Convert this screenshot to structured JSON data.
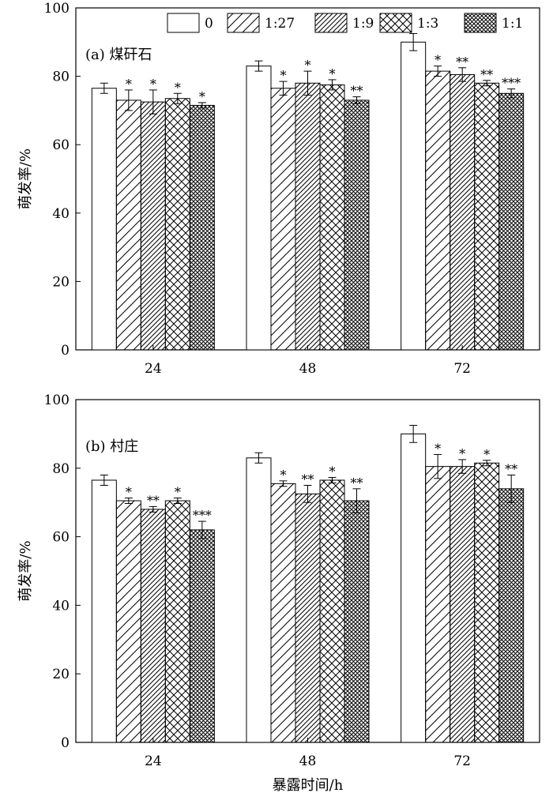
{
  "chart_data": [
    {
      "type": "bar",
      "panel_label": "(a) 煤矸石",
      "categories": [
        "24",
        "48",
        "72"
      ],
      "ylabel": "萌发率/%",
      "xlabel": "",
      "ylim": [
        0,
        100
      ],
      "yticks": [
        "0",
        "20",
        "40",
        "60",
        "80",
        "100"
      ],
      "grid": false,
      "legend_position": "top-right",
      "series": [
        {
          "name": "0",
          "pattern": "plain",
          "values": [
            76.5,
            83.0,
            90.0
          ],
          "errors": [
            1.5,
            1.5,
            2.5
          ],
          "significance": [
            "",
            "",
            ""
          ]
        },
        {
          "name": "1:27",
          "pattern": "diag-sparse",
          "values": [
            73.0,
            76.5,
            81.5
          ],
          "errors": [
            3.0,
            2.0,
            1.5
          ],
          "significance": [
            "*",
            "*",
            "*"
          ]
        },
        {
          "name": "1:9",
          "pattern": "diag-dense",
          "values": [
            72.5,
            78.0,
            80.5
          ],
          "errors": [
            3.5,
            3.5,
            2.0
          ],
          "significance": [
            "*",
            "*",
            "**"
          ]
        },
        {
          "name": "1:3",
          "pattern": "cross",
          "values": [
            73.5,
            77.5,
            78.0
          ],
          "errors": [
            1.5,
            1.5,
            0.8
          ],
          "significance": [
            "*",
            "*",
            "**"
          ]
        },
        {
          "name": "1:1",
          "pattern": "cross-dense",
          "values": [
            71.5,
            73.0,
            75.0
          ],
          "errors": [
            0.8,
            1.0,
            1.3
          ],
          "significance": [
            "*",
            "**",
            "***"
          ]
        }
      ]
    },
    {
      "type": "bar",
      "panel_label": "(b) 村庄",
      "categories": [
        "24",
        "48",
        "72"
      ],
      "ylabel": "萌发率/%",
      "xlabel": "暴露时间/h",
      "ylim": [
        0,
        100
      ],
      "yticks": [
        "0",
        "20",
        "40",
        "60",
        "80",
        "100"
      ],
      "grid": false,
      "series": [
        {
          "name": "0",
          "pattern": "plain",
          "values": [
            76.5,
            83.0,
            90.0
          ],
          "errors": [
            1.5,
            1.5,
            2.5
          ],
          "significance": [
            "",
            "",
            ""
          ]
        },
        {
          "name": "1:27",
          "pattern": "diag-sparse",
          "values": [
            70.5,
            75.5,
            80.5
          ],
          "errors": [
            0.8,
            0.8,
            3.5
          ],
          "significance": [
            "*",
            "*",
            "*"
          ]
        },
        {
          "name": "1:9",
          "pattern": "diag-dense",
          "values": [
            68.0,
            72.5,
            80.5
          ],
          "errors": [
            0.8,
            2.5,
            2.0
          ],
          "significance": [
            "**",
            "**",
            "*"
          ]
        },
        {
          "name": "1:3",
          "pattern": "cross",
          "values": [
            70.5,
            76.5,
            81.5
          ],
          "errors": [
            0.8,
            0.8,
            0.8
          ],
          "significance": [
            "*",
            "*",
            "*"
          ]
        },
        {
          "name": "1:1",
          "pattern": "cross-dense",
          "values": [
            62.0,
            70.5,
            74.0
          ],
          "errors": [
            2.5,
            3.5,
            4.0
          ],
          "significance": [
            "***",
            "**",
            "**"
          ]
        }
      ]
    }
  ]
}
